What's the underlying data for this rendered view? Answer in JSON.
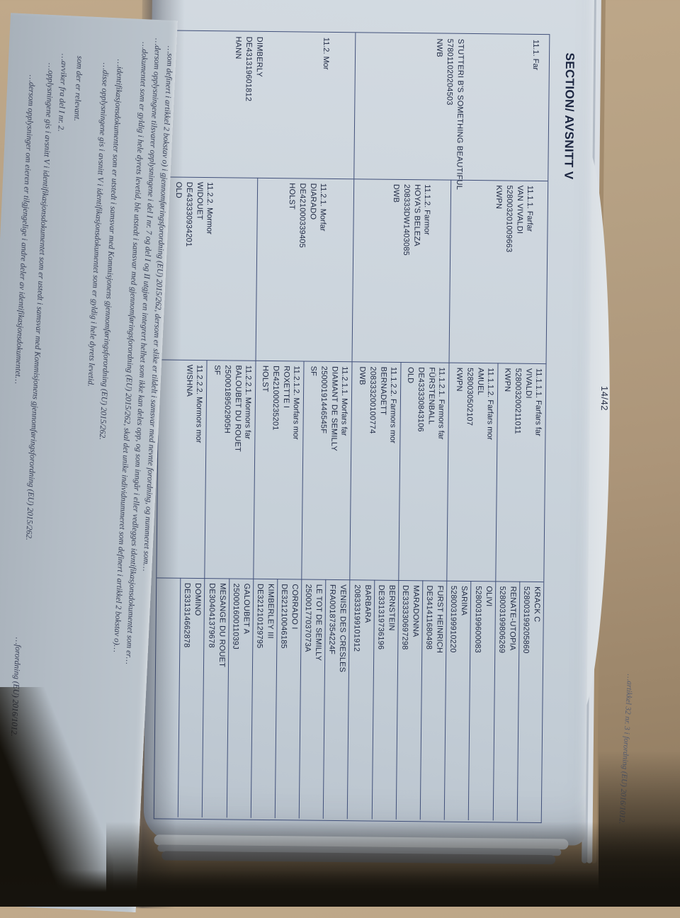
{
  "page": {
    "number": "14/42",
    "title": "SECTION/ AVSNITT V"
  },
  "pedigree": {
    "gen1": [
      {
        "label": "11.1. Far",
        "name": "STUTTERI B'S SOMETHING BEAUTIFUL",
        "number": "578011020204503",
        "breed": "NWB"
      },
      {
        "label": "11.2. Mor",
        "name": "DIMBERLY",
        "number": "DE431319601812",
        "breed": "HANN"
      }
    ],
    "gen2": [
      {
        "label": "11.1.1. Farfar",
        "name": "VAN VIVALDI",
        "number": "528003201009663",
        "breed": "KWPN"
      },
      {
        "label": "11.1.2. Farmor",
        "name": "HOYA'S BELEZA",
        "number": "208333DW1403085",
        "breed": "DWB"
      },
      {
        "label": "11.2.1. Morfar",
        "name": "DIARADO",
        "number": "DE421000339405",
        "breed": "HOLST"
      },
      {
        "label": "11.2.2. Mormor",
        "name": "WIDOUET",
        "number": "DE433330934201",
        "breed": "OLD"
      }
    ],
    "gen3": [
      {
        "label": "11.1.1.1. Farfars far",
        "name": "VIVALDI",
        "number": "528003200211011",
        "breed": "KWPN"
      },
      {
        "label": "11.1.1.2. Farfars mor",
        "name": "AMUEL",
        "number": "5280030502107",
        "breed": "KWPN"
      },
      {
        "label": "11.1.2.1. Farmors far",
        "name": "FÜRSTENBALL",
        "number": "DE433330843106",
        "breed": "OLD"
      },
      {
        "label": "11.1.2.2. Farmors mor",
        "name": "BERNADETT",
        "number": "208333200100774",
        "breed": "DWB"
      },
      {
        "label": "11.2.1.1. Morfars far",
        "name": "DIAMANT DE SEMILLY",
        "number": "25000191446545F",
        "breed": "SF"
      },
      {
        "label": "11.2.1.2. Morfars mor",
        "name": "ROXETTE I",
        "number": "DE421000235201",
        "breed": "HOLST"
      },
      {
        "label": "11.2.2.1. Mormors far",
        "name": "BALOUBET DU ROUET",
        "number": "25000189502905H",
        "breed": "SF"
      },
      {
        "label": "11.2.2.2. Mormors mor",
        "name": "WISHNA",
        "number": "",
        "breed": ""
      }
    ],
    "gen4": [
      {
        "name": "KRACK C",
        "number": "528003199205860"
      },
      {
        "name": "RENATE-UTOPIA",
        "number": "528003199806269"
      },
      {
        "name": "OLIVI",
        "number": "528003199600083"
      },
      {
        "name": "SARINA",
        "number": "528003199910220"
      },
      {
        "name": "FURST HEINRICH",
        "number": "DE341411680498"
      },
      {
        "name": "MARADONNA",
        "number": "DE333330697298"
      },
      {
        "name": "BERNSTEIN",
        "number": "DE331319736196"
      },
      {
        "name": "BARBARA",
        "number": "208333199101912"
      },
      {
        "name": "VENISE DES CRESLES",
        "number": "FRA00187354224F"
      },
      {
        "name": "LE TOT DE SEMILLY",
        "number": "25000177037073A"
      },
      {
        "name": "CORRADO I",
        "number": "DE321210046185"
      },
      {
        "name": "KIMBERLEY III",
        "number": "DE321210129795"
      },
      {
        "name": "GALOUBET A",
        "number": "25000160011039J"
      },
      {
        "name": "MESANGE DU ROUET",
        "number": "DE304041379678"
      },
      {
        "name": "DOMINO",
        "number": "DE331314662878"
      },
      {
        "name": "",
        "number": ""
      }
    ]
  },
  "footnotes": {
    "lines": [
      "…som definert i artikkel 2 bokstav o) i gjennomføringsforordning (EU) 2015/262, dersom er slike er tildelt i samsvar med nevnte forordning, og nummeret som…",
      "…dersom opplysningene tilsvarer opplysningene i del I nr. 7 og del I og II utgjør en integrert helhet som ikke kan deles opp, og som inngår i eller vedlegges identifikasjonsdokumentet som er…",
      "…dokumentet som er gyldig i hele dyrets levetid, ble utstedt i samsvar med gjennomføringsforordning (EU) 2015/262, skal det unike individnummeret som definert i artikkel 2 bokstav o)…",
      "…identifikasjonsdokumenter som er utstedt i samsvar med Kommisjonens gjennomføringsforordning (EU) 2015/262.",
      "…disse opplysningene gis i avsnitt V i identifikasjonsdokumentet som er gyldig i hele dyrets levetid.",
      "som der er relevant.",
      "…avviker fra del I nr. 2.",
      "…opplysningene gis i avsnitt V i identifikasjonsdokumentet som er ustedt i samsvar med Kommisjonens gjennomføringsforordning (EU) 2015/262.",
      "…dersom opplysninger om eieren er tilgjengelige i andre deler av identifikasjonsdokumentet…",
      "…forordning (EU) 2016/1012."
    ],
    "stack_note": "…artikkel 32 nr. 3 i forordning (EU) 2016/1012."
  },
  "colors": {
    "paper": "#cbd4dc",
    "facing_paper": "#b3bcc5",
    "ink": "#1d2742",
    "table_line": "#41507a",
    "table_surface": "#b5a083",
    "shadow_dark": "#16130d"
  }
}
